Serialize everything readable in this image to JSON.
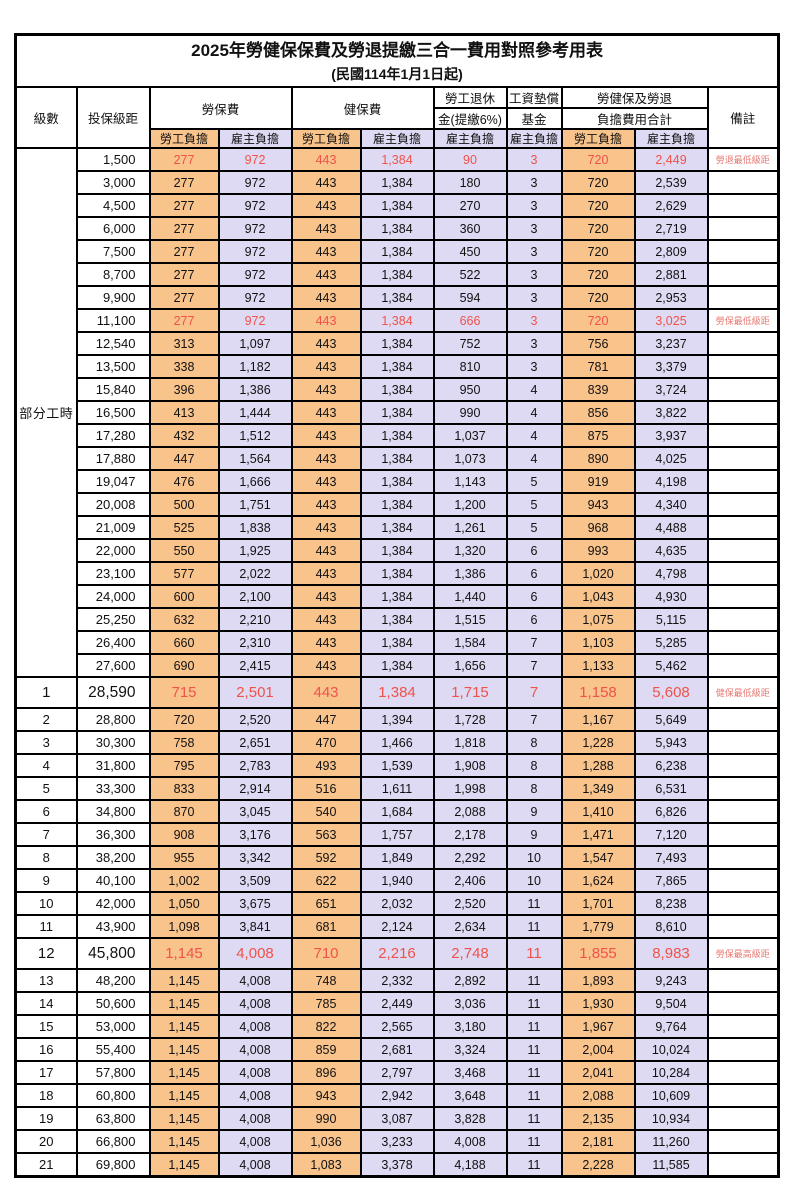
{
  "page": {
    "title": "2025年勞健保保費及勞退提繳三合一費用對照參考用表",
    "subtitle": "(民國114年1月1日起)"
  },
  "colors": {
    "employee_bg": "#F9C38C",
    "employer_bg": "#DFDAF3",
    "highlight_text": "#F0524A",
    "note_text": "#E97A73",
    "grid_border": "#000000"
  },
  "table": {
    "headers": {
      "level": "級數",
      "bracket": "投保級距",
      "labor_insurance": "勞保費",
      "health_insurance": "健保費",
      "pension_line1": "勞工退休",
      "pension_line2": "金(提繳6%)",
      "wage_fund_line1": "工資墊償",
      "wage_fund_line2": "基金",
      "total_line1": "勞健保及勞退",
      "total_line2": "負擔費用合計",
      "note": "備註",
      "employee_share": "勞工負擔",
      "employer_share": "雇主負擔"
    },
    "part_time_label": "部分工時",
    "part_time_span": 23,
    "rows": [
      {
        "amt": "1,500",
        "v": [
          "277",
          "972",
          "443",
          "1,384",
          "90",
          "3",
          "720",
          "2,449"
        ],
        "note": "勞退最低級距",
        "red": true
      },
      {
        "amt": "3,000",
        "v": [
          "277",
          "972",
          "443",
          "1,384",
          "180",
          "3",
          "720",
          "2,539"
        ]
      },
      {
        "amt": "4,500",
        "v": [
          "277",
          "972",
          "443",
          "1,384",
          "270",
          "3",
          "720",
          "2,629"
        ]
      },
      {
        "amt": "6,000",
        "v": [
          "277",
          "972",
          "443",
          "1,384",
          "360",
          "3",
          "720",
          "2,719"
        ]
      },
      {
        "amt": "7,500",
        "v": [
          "277",
          "972",
          "443",
          "1,384",
          "450",
          "3",
          "720",
          "2,809"
        ]
      },
      {
        "amt": "8,700",
        "v": [
          "277",
          "972",
          "443",
          "1,384",
          "522",
          "3",
          "720",
          "2,881"
        ]
      },
      {
        "amt": "9,900",
        "v": [
          "277",
          "972",
          "443",
          "1,384",
          "594",
          "3",
          "720",
          "2,953"
        ]
      },
      {
        "amt": "11,100",
        "v": [
          "277",
          "972",
          "443",
          "1,384",
          "666",
          "3",
          "720",
          "3,025"
        ],
        "note": "勞保最低級距",
        "red": true
      },
      {
        "amt": "12,540",
        "v": [
          "313",
          "1,097",
          "443",
          "1,384",
          "752",
          "3",
          "756",
          "3,237"
        ]
      },
      {
        "amt": "13,500",
        "v": [
          "338",
          "1,182",
          "443",
          "1,384",
          "810",
          "3",
          "781",
          "3,379"
        ]
      },
      {
        "amt": "15,840",
        "v": [
          "396",
          "1,386",
          "443",
          "1,384",
          "950",
          "4",
          "839",
          "3,724"
        ]
      },
      {
        "amt": "16,500",
        "v": [
          "413",
          "1,444",
          "443",
          "1,384",
          "990",
          "4",
          "856",
          "3,822"
        ]
      },
      {
        "amt": "17,280",
        "v": [
          "432",
          "1,512",
          "443",
          "1,384",
          "1,037",
          "4",
          "875",
          "3,937"
        ]
      },
      {
        "amt": "17,880",
        "v": [
          "447",
          "1,564",
          "443",
          "1,384",
          "1,073",
          "4",
          "890",
          "4,025"
        ]
      },
      {
        "amt": "19,047",
        "v": [
          "476",
          "1,666",
          "443",
          "1,384",
          "1,143",
          "5",
          "919",
          "4,198"
        ]
      },
      {
        "amt": "20,008",
        "v": [
          "500",
          "1,751",
          "443",
          "1,384",
          "1,200",
          "5",
          "943",
          "4,340"
        ]
      },
      {
        "amt": "21,009",
        "v": [
          "525",
          "1,838",
          "443",
          "1,384",
          "1,261",
          "5",
          "968",
          "4,488"
        ]
      },
      {
        "amt": "22,000",
        "v": [
          "550",
          "1,925",
          "443",
          "1,384",
          "1,320",
          "6",
          "993",
          "4,635"
        ]
      },
      {
        "amt": "23,100",
        "v": [
          "577",
          "2,022",
          "443",
          "1,384",
          "1,386",
          "6",
          "1,020",
          "4,798"
        ]
      },
      {
        "amt": "24,000",
        "v": [
          "600",
          "2,100",
          "443",
          "1,384",
          "1,440",
          "6",
          "1,043",
          "4,930"
        ]
      },
      {
        "amt": "25,250",
        "v": [
          "632",
          "2,210",
          "443",
          "1,384",
          "1,515",
          "6",
          "1,075",
          "5,115"
        ]
      },
      {
        "amt": "26,400",
        "v": [
          "660",
          "2,310",
          "443",
          "1,384",
          "1,584",
          "7",
          "1,103",
          "5,285"
        ]
      },
      {
        "amt": "27,600",
        "v": [
          "690",
          "2,415",
          "443",
          "1,384",
          "1,656",
          "7",
          "1,133",
          "5,462"
        ]
      },
      {
        "lv": "1",
        "amt": "28,590",
        "v": [
          "715",
          "2,501",
          "443",
          "1,384",
          "1,715",
          "7",
          "1,158",
          "5,608"
        ],
        "note": "健保最低級距",
        "red": true,
        "big": true
      },
      {
        "lv": "2",
        "amt": "28,800",
        "v": [
          "720",
          "2,520",
          "447",
          "1,394",
          "1,728",
          "7",
          "1,167",
          "5,649"
        ]
      },
      {
        "lv": "3",
        "amt": "30,300",
        "v": [
          "758",
          "2,651",
          "470",
          "1,466",
          "1,818",
          "8",
          "1,228",
          "5,943"
        ]
      },
      {
        "lv": "4",
        "amt": "31,800",
        "v": [
          "795",
          "2,783",
          "493",
          "1,539",
          "1,908",
          "8",
          "1,288",
          "6,238"
        ]
      },
      {
        "lv": "5",
        "amt": "33,300",
        "v": [
          "833",
          "2,914",
          "516",
          "1,611",
          "1,998",
          "8",
          "1,349",
          "6,531"
        ]
      },
      {
        "lv": "6",
        "amt": "34,800",
        "v": [
          "870",
          "3,045",
          "540",
          "1,684",
          "2,088",
          "9",
          "1,410",
          "6,826"
        ]
      },
      {
        "lv": "7",
        "amt": "36,300",
        "v": [
          "908",
          "3,176",
          "563",
          "1,757",
          "2,178",
          "9",
          "1,471",
          "7,120"
        ]
      },
      {
        "lv": "8",
        "amt": "38,200",
        "v": [
          "955",
          "3,342",
          "592",
          "1,849",
          "2,292",
          "10",
          "1,547",
          "7,493"
        ]
      },
      {
        "lv": "9",
        "amt": "40,100",
        "v": [
          "1,002",
          "3,509",
          "622",
          "1,940",
          "2,406",
          "10",
          "1,624",
          "7,865"
        ]
      },
      {
        "lv": "10",
        "amt": "42,000",
        "v": [
          "1,050",
          "3,675",
          "651",
          "2,032",
          "2,520",
          "11",
          "1,701",
          "8,238"
        ]
      },
      {
        "lv": "11",
        "amt": "43,900",
        "v": [
          "1,098",
          "3,841",
          "681",
          "2,124",
          "2,634",
          "11",
          "1,779",
          "8,610"
        ]
      },
      {
        "lv": "12",
        "amt": "45,800",
        "v": [
          "1,145",
          "4,008",
          "710",
          "2,216",
          "2,748",
          "11",
          "1,855",
          "8,983"
        ],
        "note": "勞保最高級距",
        "red": true,
        "big": true
      },
      {
        "lv": "13",
        "amt": "48,200",
        "v": [
          "1,145",
          "4,008",
          "748",
          "2,332",
          "2,892",
          "11",
          "1,893",
          "9,243"
        ]
      },
      {
        "lv": "14",
        "amt": "50,600",
        "v": [
          "1,145",
          "4,008",
          "785",
          "2,449",
          "3,036",
          "11",
          "1,930",
          "9,504"
        ]
      },
      {
        "lv": "15",
        "amt": "53,000",
        "v": [
          "1,145",
          "4,008",
          "822",
          "2,565",
          "3,180",
          "11",
          "1,967",
          "9,764"
        ]
      },
      {
        "lv": "16",
        "amt": "55,400",
        "v": [
          "1,145",
          "4,008",
          "859",
          "2,681",
          "3,324",
          "11",
          "2,004",
          "10,024"
        ]
      },
      {
        "lv": "17",
        "amt": "57,800",
        "v": [
          "1,145",
          "4,008",
          "896",
          "2,797",
          "3,468",
          "11",
          "2,041",
          "10,284"
        ]
      },
      {
        "lv": "18",
        "amt": "60,800",
        "v": [
          "1,145",
          "4,008",
          "943",
          "2,942",
          "3,648",
          "11",
          "2,088",
          "10,609"
        ]
      },
      {
        "lv": "19",
        "amt": "63,800",
        "v": [
          "1,145",
          "4,008",
          "990",
          "3,087",
          "3,828",
          "11",
          "2,135",
          "10,934"
        ]
      },
      {
        "lv": "20",
        "amt": "66,800",
        "v": [
          "1,145",
          "4,008",
          "1,036",
          "3,233",
          "4,008",
          "11",
          "2,181",
          "11,260"
        ]
      },
      {
        "lv": "21",
        "amt": "69,800",
        "v": [
          "1,145",
          "4,008",
          "1,083",
          "3,378",
          "4,188",
          "11",
          "2,228",
          "11,585"
        ]
      }
    ]
  }
}
